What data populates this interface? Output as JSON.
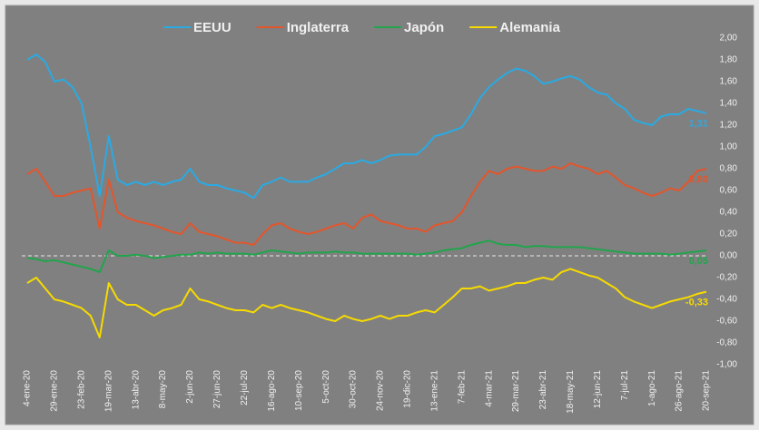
{
  "chart_data": {
    "type": "line",
    "legend": "top",
    "zero_line": true,
    "categories": [
      "4-ene-20",
      null,
      null,
      "29-ene-20",
      null,
      null,
      "23-feb-20",
      null,
      null,
      "19-mar-20",
      null,
      null,
      "13-abr-20",
      null,
      null,
      "8-may-20",
      null,
      null,
      "2-jun-20",
      null,
      null,
      "27-jun-20",
      null,
      null,
      "22-jul-20",
      null,
      null,
      "16-ago-20",
      null,
      null,
      "10-sep-20",
      null,
      null,
      "5-oct-20",
      null,
      null,
      "30-oct-20",
      null,
      null,
      "24-nov-20",
      null,
      null,
      "19-dic-20",
      null,
      null,
      "13-ene-21",
      null,
      null,
      "7-feb-21",
      null,
      null,
      "4-mar-21",
      null,
      null,
      "29-mar-21",
      null,
      null,
      "23-abr-21",
      null,
      null,
      "18-may-21",
      null,
      null,
      "12-jun-21",
      null,
      null,
      "7-jul-21",
      null,
      null,
      "1-ago-21",
      null,
      null,
      "26-ago-21",
      null,
      null,
      "20-sep-21"
    ],
    "series": [
      {
        "name": "EEUU",
        "color": "#2aaae2",
        "values": [
          1.8,
          1.85,
          1.78,
          1.6,
          1.62,
          1.55,
          1.4,
          1.0,
          0.55,
          1.1,
          0.7,
          0.65,
          0.68,
          0.65,
          0.68,
          0.65,
          0.68,
          0.7,
          0.8,
          0.68,
          0.65,
          0.65,
          0.62,
          0.6,
          0.58,
          0.53,
          0.65,
          0.68,
          0.72,
          0.68,
          0.68,
          0.68,
          0.72,
          0.75,
          0.8,
          0.85,
          0.85,
          0.88,
          0.85,
          0.88,
          0.92,
          0.93,
          0.93,
          0.93,
          1.0,
          1.1,
          1.12,
          1.15,
          1.18,
          1.3,
          1.45,
          1.55,
          1.62,
          1.68,
          1.72,
          1.7,
          1.65,
          1.58,
          1.6,
          1.63,
          1.65,
          1.62,
          1.55,
          1.5,
          1.48,
          1.4,
          1.35,
          1.25,
          1.22,
          1.2,
          1.28,
          1.3,
          1.3,
          1.35,
          1.33,
          1.31
        ],
        "value_labels": {
          "75": "1,31"
        }
      },
      {
        "name": "Inglaterra",
        "color": "#e2562c",
        "values": [
          0.75,
          0.8,
          0.68,
          0.55,
          0.55,
          0.58,
          0.6,
          0.62,
          0.25,
          0.7,
          0.4,
          0.35,
          0.32,
          0.3,
          0.28,
          0.25,
          0.22,
          0.2,
          0.3,
          0.22,
          0.2,
          0.18,
          0.15,
          0.12,
          0.12,
          0.1,
          0.2,
          0.28,
          0.3,
          0.25,
          0.22,
          0.2,
          0.22,
          0.25,
          0.28,
          0.3,
          0.25,
          0.35,
          0.38,
          0.32,
          0.3,
          0.28,
          0.25,
          0.25,
          0.22,
          0.28,
          0.3,
          0.32,
          0.4,
          0.55,
          0.68,
          0.78,
          0.75,
          0.8,
          0.82,
          0.8,
          0.78,
          0.78,
          0.82,
          0.8,
          0.85,
          0.82,
          0.8,
          0.75,
          0.78,
          0.72,
          0.65,
          0.62,
          0.58,
          0.55,
          0.58,
          0.62,
          0.6,
          0.68,
          0.78,
          0.8
        ],
        "value_labels": {
          "75": "0,80"
        }
      },
      {
        "name": "Japón",
        "color": "#22a44c",
        "values": [
          -0.02,
          -0.03,
          -0.05,
          -0.04,
          -0.06,
          -0.08,
          -0.1,
          -0.12,
          -0.15,
          0.05,
          0.0,
          0.0,
          0.01,
          0.0,
          -0.02,
          -0.01,
          0.0,
          0.01,
          0.01,
          0.03,
          0.02,
          0.03,
          0.02,
          0.02,
          0.02,
          0.01,
          0.03,
          0.05,
          0.04,
          0.03,
          0.02,
          0.03,
          0.03,
          0.03,
          0.04,
          0.03,
          0.03,
          0.02,
          0.02,
          0.02,
          0.02,
          0.02,
          0.02,
          0.01,
          0.02,
          0.03,
          0.05,
          0.06,
          0.07,
          0.1,
          0.12,
          0.14,
          0.11,
          0.1,
          0.1,
          0.08,
          0.09,
          0.09,
          0.08,
          0.08,
          0.08,
          0.08,
          0.07,
          0.06,
          0.05,
          0.04,
          0.03,
          0.02,
          0.02,
          0.02,
          0.02,
          0.01,
          0.02,
          0.03,
          0.04,
          0.05
        ],
        "value_labels": {
          "75": "0,05"
        }
      },
      {
        "name": "Alemania",
        "color": "#f6da00",
        "values": [
          -0.25,
          -0.2,
          -0.3,
          -0.4,
          -0.42,
          -0.45,
          -0.48,
          -0.55,
          -0.75,
          -0.25,
          -0.4,
          -0.45,
          -0.45,
          -0.5,
          -0.55,
          -0.5,
          -0.48,
          -0.45,
          -0.3,
          -0.4,
          -0.42,
          -0.45,
          -0.48,
          -0.5,
          -0.5,
          -0.52,
          -0.45,
          -0.48,
          -0.45,
          -0.48,
          -0.5,
          -0.52,
          -0.55,
          -0.58,
          -0.6,
          -0.55,
          -0.58,
          -0.6,
          -0.58,
          -0.55,
          -0.58,
          -0.55,
          -0.55,
          -0.52,
          -0.5,
          -0.52,
          -0.45,
          -0.38,
          -0.3,
          -0.3,
          -0.28,
          -0.32,
          -0.3,
          -0.28,
          -0.25,
          -0.25,
          -0.22,
          -0.2,
          -0.22,
          -0.15,
          -0.12,
          -0.15,
          -0.18,
          -0.2,
          -0.25,
          -0.3,
          -0.38,
          -0.42,
          -0.45,
          -0.48,
          -0.45,
          -0.42,
          -0.4,
          -0.38,
          -0.35,
          -0.33
        ],
        "value_labels": {
          "75": "-0,33"
        }
      }
    ],
    "ylim": [
      -1.0,
      2.0
    ],
    "yticks": [
      {
        "value": -1.0,
        "label": "-1,00"
      },
      {
        "value": -0.8,
        "label": "-0,80"
      },
      {
        "value": -0.6,
        "label": "-0,60"
      },
      {
        "value": -0.4,
        "label": "-0,40"
      },
      {
        "value": -0.2,
        "label": "-0,20"
      },
      {
        "value": 0.0,
        "label": "0,00"
      },
      {
        "value": 0.2,
        "label": "0,20"
      },
      {
        "value": 0.4,
        "label": "0,40"
      },
      {
        "value": 0.6,
        "label": "0,60"
      },
      {
        "value": 0.8,
        "label": "0,80"
      },
      {
        "value": 1.0,
        "label": "1,00"
      },
      {
        "value": 1.2,
        "label": "1,20"
      },
      {
        "value": 1.4,
        "label": "1,40"
      },
      {
        "value": 1.6,
        "label": "1,60"
      },
      {
        "value": 1.8,
        "label": "1,80"
      },
      {
        "value": 2.0,
        "label": "2,00"
      }
    ]
  }
}
